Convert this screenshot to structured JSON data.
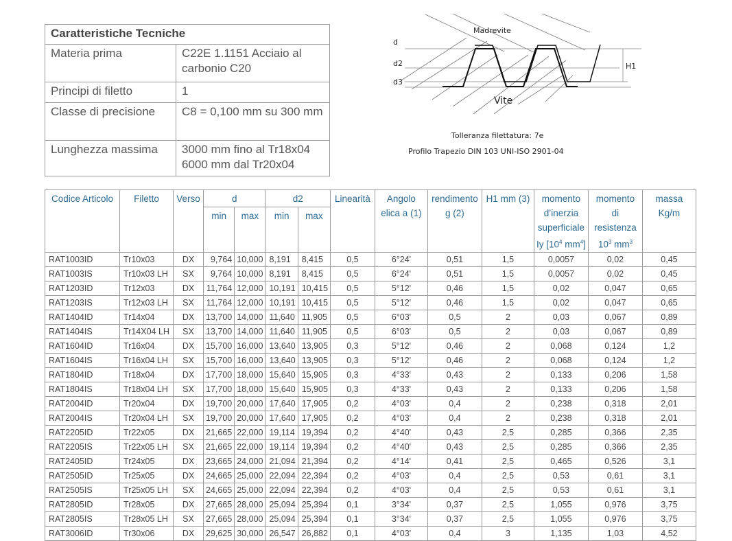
{
  "spec": {
    "title": "Caratteristiche Tecniche",
    "rows": [
      {
        "k": "Materia prima",
        "v": "C22E 1.1151 Acciaio al carbonio C20"
      },
      {
        "k": "Principi di filetto",
        "v": "1"
      },
      {
        "k": "Classe di precisione",
        "v": "C8  =  0,100 mm su 300 mm"
      },
      {
        "k": "Lunghezza massima",
        "v": "3000 mm fino al Tr18x04",
        "v2": "6000 mm dal Tr20x04"
      }
    ]
  },
  "diagram": {
    "madrevite": "Madrevite",
    "vite": "Vite",
    "d": "d",
    "d2": "d2",
    "d3": "d3",
    "h1": "H1",
    "tolerance": "Tolleranza filettatura: 7e",
    "profile": "Profilo Trapezio DIN 103  UNI-ISO 2901-04"
  },
  "table": {
    "headers": {
      "code": "Codice Articolo",
      "thread": "Filetto",
      "dir": "Verso",
      "d": "d",
      "d2": "d2",
      "min": "min",
      "max": "max",
      "lin": "Linearità",
      "angle1": "Angolo",
      "angle2": "elica a (1)",
      "eff1": "rendimento",
      "eff2": "g (2)",
      "h1": "H1 mm (3)",
      "inertia1": "momento",
      "inertia2": "d’inerzia",
      "inertia3": "superficiale",
      "inertia4": "Iy [10",
      "inertia_exp1": "4",
      "inertia5": " mm",
      "inertia_exp2": "4",
      "inertia6": "]",
      "res1": "momento",
      "res2": "di",
      "res3": "resistenza",
      "res4": "10",
      "res_exp1": "3",
      "res5": " mm",
      "res_exp2": "3",
      "mass1": "massa",
      "mass2": "Kg/m"
    },
    "rows": [
      [
        "RAT1003ID",
        "Tr10x03",
        "DX",
        "9,764",
        "10,000",
        "8,191",
        "8,415",
        "0,5",
        "6°24'",
        "0,51",
        "1,5",
        "0,0057",
        "0,02",
        "0,45"
      ],
      [
        "RAT1003IS",
        "Tr10x03 LH",
        "SX",
        "9,764",
        "10,000",
        "8,191",
        "8,415",
        "0,5",
        "6°24'",
        "0,51",
        "1,5",
        "0,0057",
        "0,02",
        "0,45"
      ],
      [
        "RAT1203ID",
        "Tr12x03",
        "DX",
        "11,764",
        "12,000",
        "10,191",
        "10,415",
        "0,5",
        "5°12'",
        "0,46",
        "1,5",
        "0,02",
        "0,047",
        "0,65"
      ],
      [
        "RAT1203IS",
        "Tr12x03 LH",
        "SX",
        "11,764",
        "12,000",
        "10,191",
        "10,415",
        "0,5",
        "5°12'",
        "0,46",
        "1,5",
        "0,02",
        "0,047",
        "0,65"
      ],
      [
        "RAT1404ID",
        "Tr14x04",
        "DX",
        "13,700",
        "14,000",
        "11,640",
        "11,905",
        "0,5",
        "6°03'",
        "0,5",
        "2",
        "0,03",
        "0,067",
        "0,89"
      ],
      [
        "RAT1404IS",
        "Tr14X04 LH",
        "SX",
        "13,700",
        "14,000",
        "11,640",
        "11,905",
        "0,5",
        "6°03'",
        "0,5",
        "2",
        "0,03",
        "0,067",
        "0,89"
      ],
      [
        "RAT1604ID",
        "Tr16x04",
        "DX",
        "15,700",
        "16,000",
        "13,640",
        "13,905",
        "0,3",
        "5°12'",
        "0,46",
        "2",
        "0,068",
        "0,124",
        "1,2"
      ],
      [
        "RAT1604IS",
        "Tr16x04 LH",
        "SX",
        "15,700",
        "16,000",
        "13,640",
        "13,905",
        "0,3",
        "5°12'",
        "0,46",
        "2",
        "0,068",
        "0,124",
        "1,2"
      ],
      [
        "RAT1804ID",
        "Tr18x04",
        "DX",
        "17,700",
        "18,000",
        "15,640",
        "15,905",
        "0,3",
        "4°33'",
        "0,43",
        "2",
        "0,133",
        "0,206",
        "1,58"
      ],
      [
        "RAT1804IS",
        "Tr18x04 LH",
        "SX",
        "17,700",
        "18,000",
        "15,640",
        "15,905",
        "0,3",
        "4°33'",
        "0,43",
        "2",
        "0,133",
        "0,206",
        "1,58"
      ],
      [
        "RAT2004ID",
        "Tr20x04",
        "DX",
        "19,700",
        "20,000",
        "17,640",
        "17,905",
        "0,2",
        "4°03'",
        "0,4",
        "2",
        "0,238",
        "0,318",
        "2,01"
      ],
      [
        "RAT2004IS",
        "Tr20x04 LH",
        "SX",
        "19,700",
        "20,000",
        "17,640",
        "17,905",
        "0,2",
        "4°03'",
        "0,4",
        "2",
        "0,238",
        "0,318",
        "2,01"
      ],
      [
        "RAT2205ID",
        "Tr22x05",
        "DX",
        "21,665",
        "22,000",
        "19,114",
        "19,394",
        "0,2",
        "4°40'",
        "0,43",
        "2,5",
        "0,285",
        "0,366",
        "2,35"
      ],
      [
        "RAT2205IS",
        "Tr22x05 LH",
        "SX",
        "21,665",
        "22,000",
        "19,114",
        "19,394",
        "0,2",
        "4°40'",
        "0,43",
        "2,5",
        "0,285",
        "0,366",
        "2,35"
      ],
      [
        "RAT2405ID",
        "Tr24x05",
        "DX",
        "23,665",
        "24,000",
        "21,094",
        "21,394",
        "0,2",
        "4°14'",
        "0,41",
        "2,5",
        "0,465",
        "0,526",
        "3,1"
      ],
      [
        "RAT2505ID",
        "Tr25x05",
        "DX",
        "24,665",
        "25,000",
        "22,094",
        "22,394",
        "0,2",
        "4°03'",
        "0,4",
        "2,5",
        "0,53",
        "0,61",
        "3,1"
      ],
      [
        "RAT2505IS",
        "Tr25x05 LH",
        "SX",
        "24,665",
        "25,000",
        "22,094",
        "22,394",
        "0,2",
        "4°03'",
        "0,4",
        "2,5",
        "0,53",
        "0,61",
        "3,1"
      ],
      [
        "RAT2805ID",
        "Tr28x05",
        "DX",
        "27,665",
        "28,000",
        "25,094",
        "25,394",
        "0,1",
        "3°34'",
        "0,37",
        "2,5",
        "1,055",
        "0,976",
        "3,75"
      ],
      [
        "RAT2805IS",
        "Tr28x05 LH",
        "SX",
        "27,665",
        "28,000",
        "25,094",
        "25,394",
        "0,1",
        "3°34'",
        "0,37",
        "2,5",
        "1,055",
        "0,976",
        "3,75"
      ],
      [
        "RAT3006ID",
        "Tr30x06",
        "DX",
        "29,625",
        "30,000",
        "26,547",
        "26,882",
        "0,1",
        "4°03'",
        "0,4",
        "3",
        "1,135",
        "1,03",
        "4,52"
      ]
    ]
  }
}
